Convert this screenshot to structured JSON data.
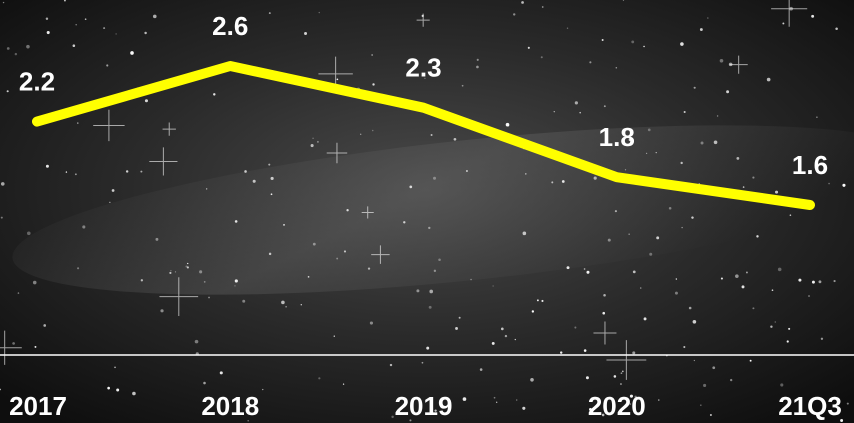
{
  "chart_data": {
    "type": "line",
    "categories": [
      "2017",
      "2018",
      "2019",
      "2020",
      "21Q3"
    ],
    "values": [
      2.2,
      2.6,
      2.3,
      1.8,
      1.6
    ],
    "color": "#ffff00"
  }
}
